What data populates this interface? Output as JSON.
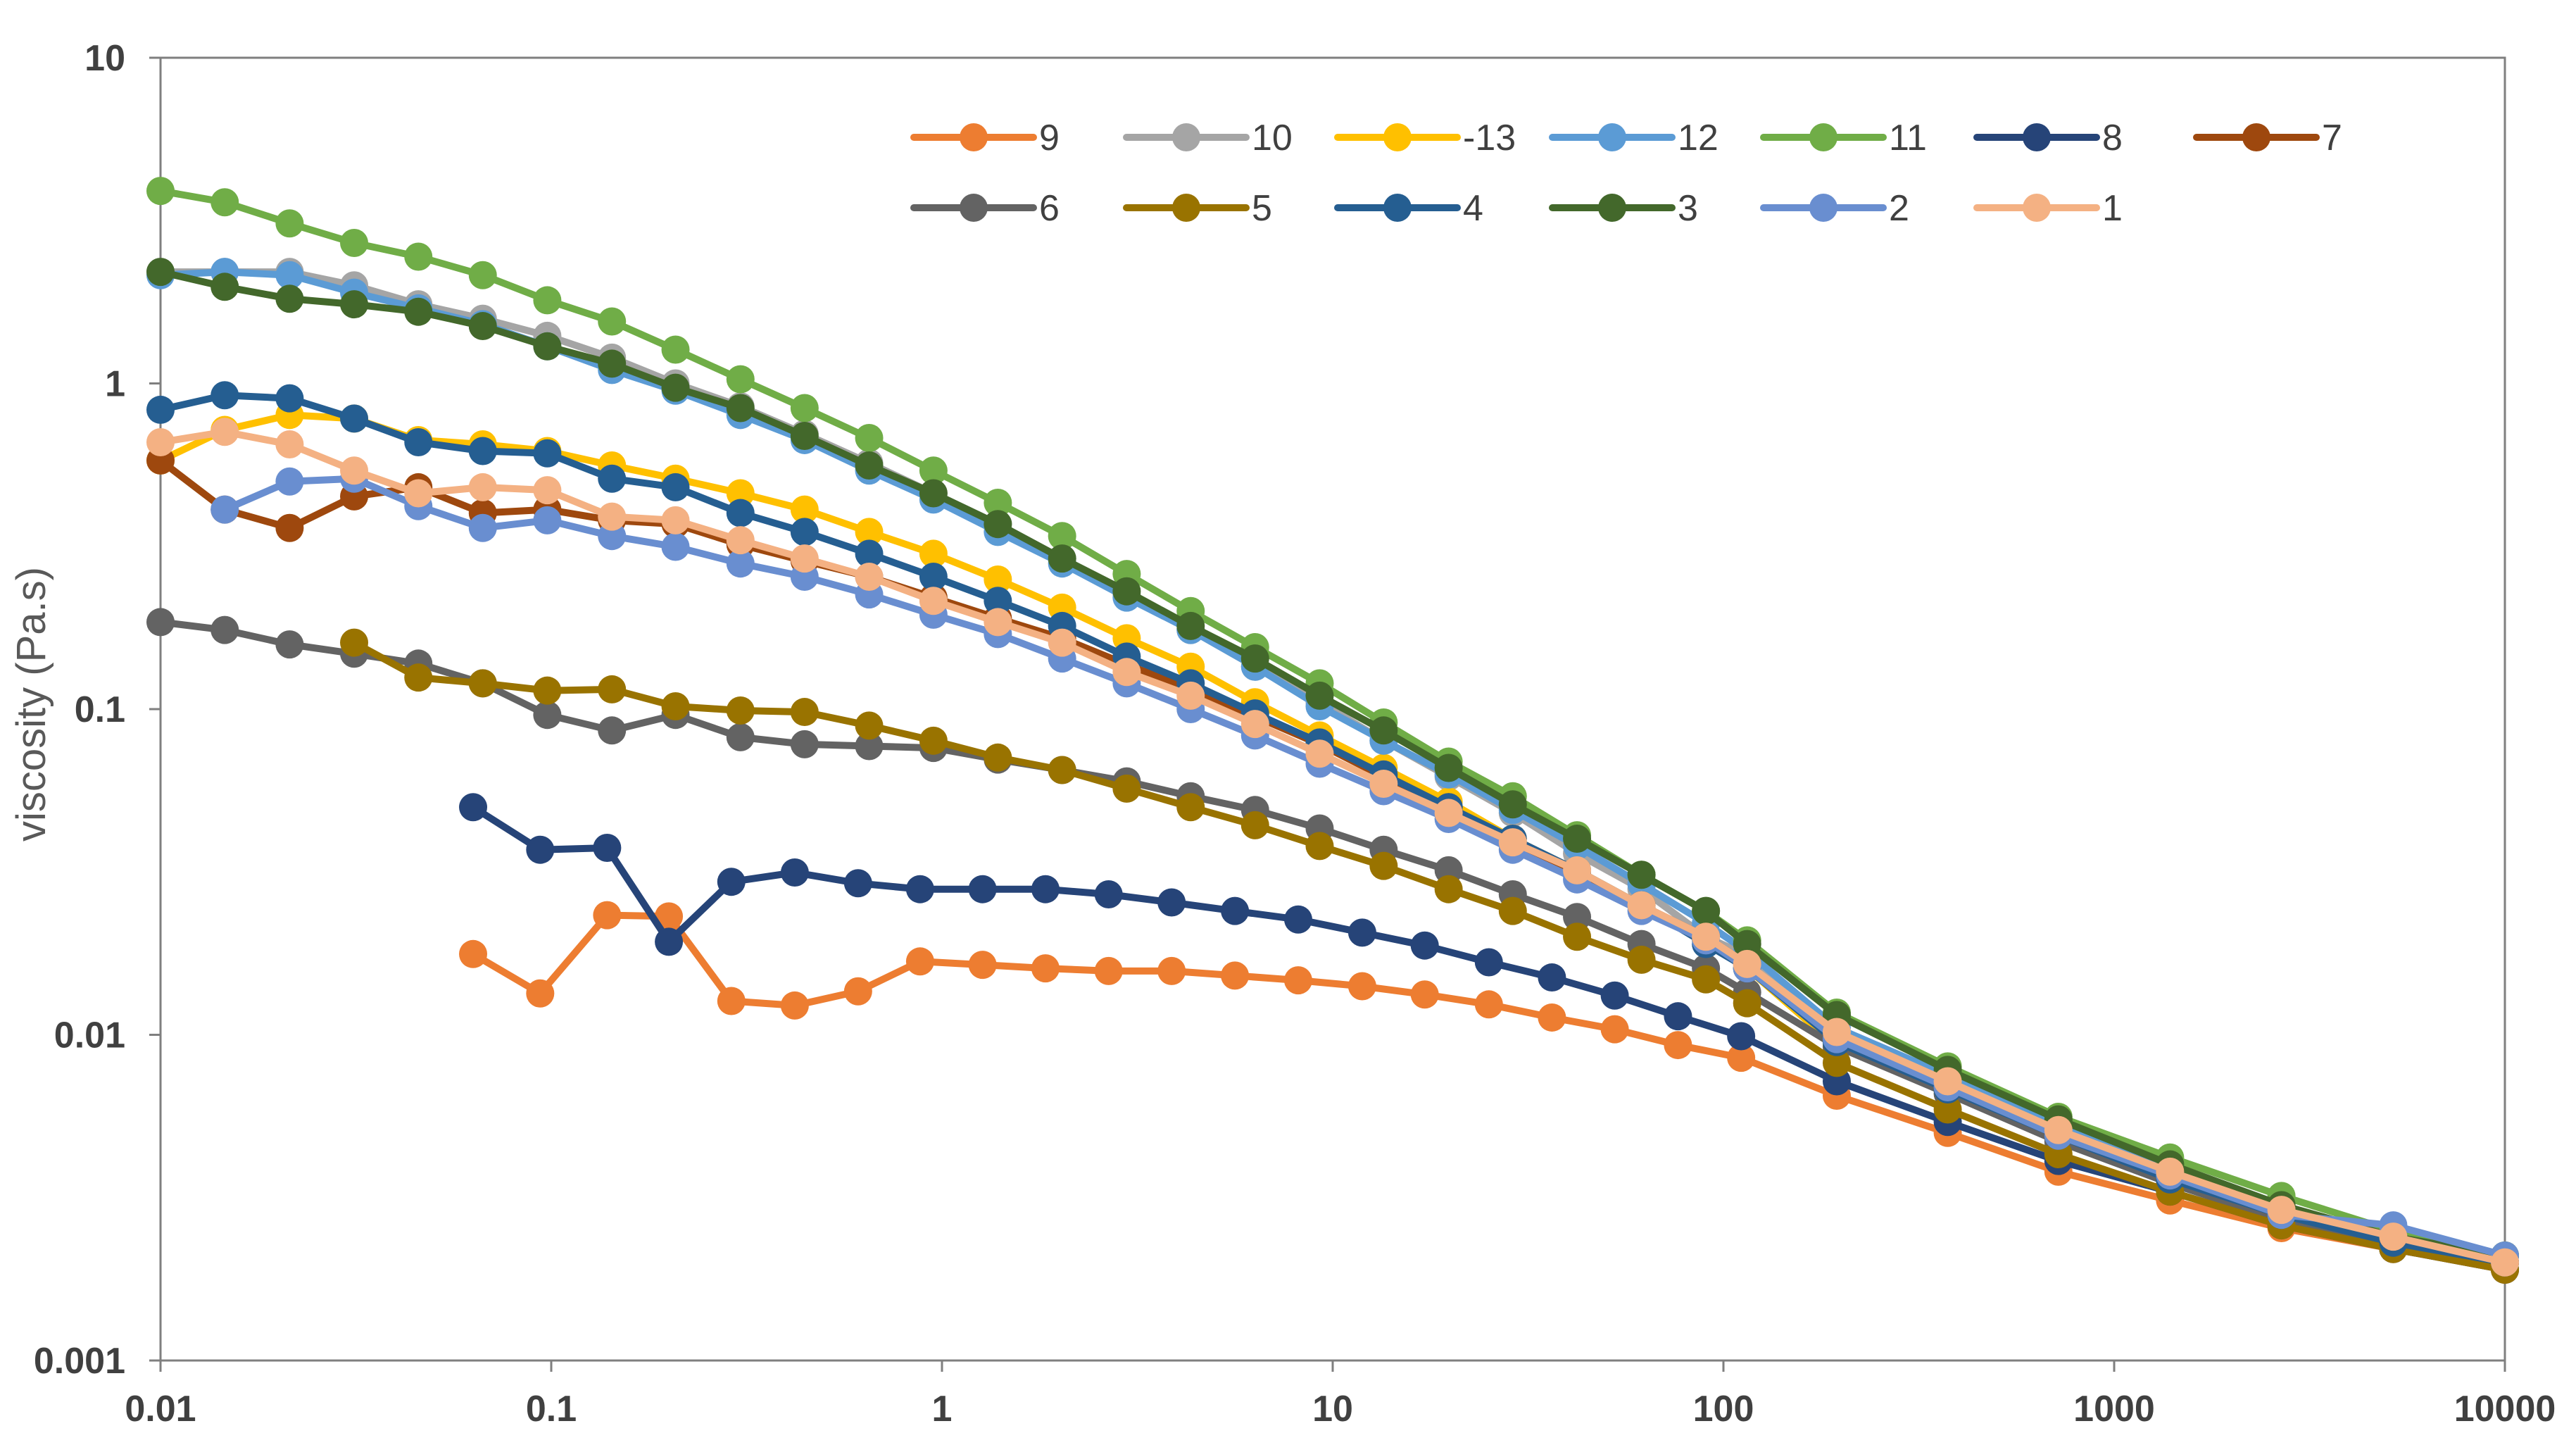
{
  "chart_data": {
    "type": "line",
    "title": "",
    "xlabel": "",
    "ylabel": "viscosity (Pa.s)",
    "xscale": "log",
    "yscale": "log",
    "xlim": [
      0.01,
      10000
    ],
    "ylim": [
      0.001,
      10
    ],
    "x_ticks": [
      "0.01",
      "0.1",
      "1",
      "10",
      "100",
      "1000",
      "10000"
    ],
    "y_ticks": [
      "0.001",
      "0.01",
      "0.1",
      "1",
      "10"
    ],
    "grid": false,
    "legend_position": "top-right",
    "series": [
      {
        "name": "9",
        "color": "#ED7D31",
        "x": [
          0.0631,
          0.0937,
          0.139,
          0.2,
          0.289,
          0.42,
          0.61,
          0.879,
          1.27,
          1.84,
          2.67,
          3.87,
          5.62,
          8.16,
          11.9,
          17.2,
          25.1,
          36.4,
          52.7,
          76.5,
          111,
          195,
          375,
          720,
          1390,
          2680,
          5180,
          10000
        ],
        "y": [
          0.0177,
          0.0134,
          0.0233,
          0.0231,
          0.0127,
          0.0123,
          0.0136,
          0.0168,
          0.0164,
          0.016,
          0.0157,
          0.0157,
          0.0152,
          0.0147,
          0.0141,
          0.0133,
          0.0124,
          0.0113,
          0.0104,
          0.0093,
          0.0085,
          0.0065,
          0.005,
          0.0038,
          0.0031,
          0.00255,
          0.0022,
          0.0019
        ]
      },
      {
        "name": "10",
        "color": "#A5A5A5",
        "x": [
          0.01,
          0.0146,
          0.0214,
          0.0313,
          0.0457,
          0.0668,
          0.0977,
          0.143,
          0.208,
          0.305,
          0.445,
          0.651,
          0.951,
          1.39,
          2.03,
          2.97,
          4.33,
          6.33,
          9.26,
          13.5,
          19.8,
          28.9,
          42.2,
          61.7,
          90.2,
          115,
          195,
          375,
          720,
          1390,
          2680,
          5180,
          10000
        ],
        "y": [
          2.2,
          2.2,
          2.2,
          2.0,
          1.75,
          1.58,
          1.4,
          1.2,
          1.0,
          0.85,
          0.7,
          0.57,
          0.46,
          0.37,
          0.29,
          0.225,
          0.175,
          0.135,
          0.105,
          0.08,
          0.062,
          0.048,
          0.036,
          0.028,
          0.02,
          0.0175,
          0.01,
          0.007,
          0.005,
          0.0037,
          0.0028,
          0.0023,
          0.002
        ]
      },
      {
        "name": "-13",
        "color": "#FFC000",
        "x": [
          0.01,
          0.0146,
          0.0214,
          0.0313,
          0.0457,
          0.0668,
          0.0977,
          0.143,
          0.208,
          0.305,
          0.445,
          0.651,
          0.951,
          1.39,
          2.03,
          2.97,
          4.33,
          6.33,
          9.26,
          13.5,
          19.8,
          28.9,
          42.2,
          61.7,
          90.2,
          115,
          195,
          375,
          720,
          1390,
          2680,
          5180,
          10000
        ],
        "y": [
          0.58,
          0.72,
          0.8,
          0.78,
          0.67,
          0.65,
          0.62,
          0.56,
          0.51,
          0.46,
          0.41,
          0.35,
          0.3,
          0.25,
          0.205,
          0.165,
          0.135,
          0.105,
          0.083,
          0.066,
          0.052,
          0.04,
          0.032,
          0.025,
          0.0195,
          0.016,
          0.0092,
          0.0068,
          0.0048,
          0.0036,
          0.0028,
          0.0023,
          0.002
        ]
      },
      {
        "name": "12",
        "color": "#5B9BD5",
        "x": [
          0.01,
          0.0146,
          0.0214,
          0.0313,
          0.0457,
          0.0668,
          0.0977,
          0.143,
          0.208,
          0.305,
          0.445,
          0.651,
          0.951,
          1.39,
          2.03,
          2.97,
          4.33,
          6.33,
          9.26,
          13.5,
          19.8,
          28.9,
          42.2,
          61.7,
          90.2,
          115,
          195,
          375,
          720,
          1390,
          2680,
          5180,
          10000
        ],
        "y": [
          2.15,
          2.2,
          2.15,
          1.9,
          1.7,
          1.52,
          1.3,
          1.1,
          0.95,
          0.8,
          0.67,
          0.54,
          0.44,
          0.35,
          0.28,
          0.22,
          0.175,
          0.135,
          0.102,
          0.08,
          0.063,
          0.049,
          0.038,
          0.029,
          0.022,
          0.018,
          0.0105,
          0.0075,
          0.0053,
          0.0039,
          0.0029,
          0.0024,
          0.0021
        ]
      },
      {
        "name": "11",
        "color": "#70AD47",
        "x": [
          0.01,
          0.0146,
          0.0214,
          0.0313,
          0.0457,
          0.0668,
          0.0977,
          0.143,
          0.208,
          0.305,
          0.445,
          0.651,
          0.951,
          1.39,
          2.03,
          2.97,
          4.33,
          6.33,
          9.26,
          13.5,
          19.8,
          28.9,
          42.2,
          61.7,
          90.2,
          115,
          195,
          375,
          720,
          1390,
          2680,
          5180,
          10000
        ],
        "y": [
          3.9,
          3.6,
          3.1,
          2.7,
          2.45,
          2.15,
          1.8,
          1.55,
          1.27,
          1.03,
          0.84,
          0.68,
          0.54,
          0.43,
          0.34,
          0.26,
          0.2,
          0.155,
          0.12,
          0.091,
          0.069,
          0.054,
          0.041,
          0.031,
          0.024,
          0.0195,
          0.0117,
          0.008,
          0.0056,
          0.0042,
          0.0032,
          0.0025,
          0.0021
        ]
      },
      {
        "name": "8",
        "color": "#264478",
        "x": [
          0.0631,
          0.0937,
          0.139,
          0.2,
          0.289,
          0.42,
          0.61,
          0.879,
          1.27,
          1.84,
          2.67,
          3.87,
          5.62,
          8.16,
          11.9,
          17.2,
          25.1,
          36.4,
          52.7,
          76.5,
          111,
          195,
          375,
          720,
          1390,
          2680,
          5180,
          10000
        ],
        "y": [
          0.05,
          0.037,
          0.0375,
          0.0193,
          0.0295,
          0.0315,
          0.0292,
          0.028,
          0.028,
          0.028,
          0.027,
          0.0255,
          0.024,
          0.0226,
          0.0206,
          0.0188,
          0.0167,
          0.015,
          0.0132,
          0.0114,
          0.0099,
          0.0072,
          0.0054,
          0.0041,
          0.0033,
          0.0026,
          0.0022,
          0.0019
        ]
      },
      {
        "name": "7",
        "color": "#9E480E",
        "x": [
          0.01,
          0.0146,
          0.0214,
          0.0313,
          0.0457,
          0.0668,
          0.0977,
          0.143,
          0.208,
          0.305,
          0.445,
          0.651,
          0.951,
          1.39,
          2.03,
          2.97,
          4.33,
          6.33,
          9.26,
          13.5,
          19.8,
          28.9,
          42.2,
          61.7,
          90.2,
          115,
          195,
          375,
          720,
          1390,
          2680,
          5180,
          10000
        ],
        "y": [
          0.58,
          0.41,
          0.36,
          0.45,
          0.48,
          0.4,
          0.41,
          0.38,
          0.37,
          0.32,
          0.285,
          0.255,
          0.22,
          0.19,
          0.165,
          0.137,
          0.115,
          0.095,
          0.078,
          0.062,
          0.05,
          0.039,
          0.031,
          0.025,
          0.02,
          0.0165,
          0.0098,
          0.007,
          0.005,
          0.0037,
          0.0028,
          0.0023,
          0.002
        ]
      },
      {
        "name": "6",
        "color": "#636363",
        "x": [
          0.01,
          0.0146,
          0.0214,
          0.0313,
          0.0457,
          0.0668,
          0.0977,
          0.143,
          0.208,
          0.305,
          0.445,
          0.651,
          0.951,
          1.39,
          2.03,
          2.97,
          4.33,
          6.33,
          9.26,
          13.5,
          19.8,
          28.9,
          42.2,
          61.7,
          90.2,
          115,
          195,
          375,
          720,
          1390,
          2680,
          5180,
          10000
        ],
        "y": [
          0.185,
          0.175,
          0.158,
          0.148,
          0.138,
          0.12,
          0.096,
          0.086,
          0.096,
          0.082,
          0.078,
          0.077,
          0.076,
          0.07,
          0.065,
          0.06,
          0.054,
          0.049,
          0.043,
          0.037,
          0.032,
          0.027,
          0.023,
          0.019,
          0.016,
          0.0135,
          0.0092,
          0.0066,
          0.0047,
          0.0035,
          0.0027,
          0.0022,
          0.0019
        ]
      },
      {
        "name": "5",
        "color": "#997300",
        "x": [
          0.0313,
          0.0457,
          0.0668,
          0.0977,
          0.143,
          0.208,
          0.305,
          0.445,
          0.651,
          0.951,
          1.39,
          2.03,
          2.97,
          4.33,
          6.33,
          9.26,
          13.5,
          19.8,
          28.9,
          42.2,
          61.7,
          90.2,
          115,
          195,
          375,
          720,
          1390,
          2680,
          5180,
          10000
        ],
        "y": [
          0.16,
          0.125,
          0.12,
          0.114,
          0.115,
          0.102,
          0.099,
          0.098,
          0.089,
          0.08,
          0.071,
          0.065,
          0.057,
          0.05,
          0.044,
          0.038,
          0.033,
          0.028,
          0.024,
          0.02,
          0.017,
          0.0148,
          0.0125,
          0.0082,
          0.0059,
          0.0043,
          0.0033,
          0.0026,
          0.0022,
          0.0019
        ]
      },
      {
        "name": "4",
        "color": "#255E91",
        "x": [
          0.01,
          0.0146,
          0.0214,
          0.0313,
          0.0457,
          0.0668,
          0.0977,
          0.143,
          0.208,
          0.305,
          0.445,
          0.651,
          0.951,
          1.39,
          2.03,
          2.97,
          4.33,
          6.33,
          9.26,
          13.5,
          19.8,
          28.9,
          42.2,
          61.7,
          90.2,
          115,
          195,
          375,
          720,
          1390,
          2680,
          5180,
          10000
        ],
        "y": [
          0.83,
          0.92,
          0.9,
          0.78,
          0.66,
          0.62,
          0.61,
          0.51,
          0.48,
          0.4,
          0.35,
          0.3,
          0.255,
          0.215,
          0.18,
          0.145,
          0.12,
          0.097,
          0.079,
          0.063,
          0.05,
          0.04,
          0.032,
          0.025,
          0.019,
          0.016,
          0.0095,
          0.0068,
          0.0049,
          0.0036,
          0.0028,
          0.0023,
          0.002
        ]
      },
      {
        "name": "3",
        "color": "#43682B",
        "x": [
          0.01,
          0.0146,
          0.0214,
          0.0313,
          0.0457,
          0.0668,
          0.0977,
          0.143,
          0.208,
          0.305,
          0.445,
          0.651,
          0.951,
          1.39,
          2.03,
          2.97,
          4.33,
          6.33,
          9.26,
          13.5,
          19.8,
          28.9,
          42.2,
          61.7,
          90.2,
          115,
          195,
          375,
          720,
          1390,
          2680,
          5180,
          10000
        ],
        "y": [
          2.2,
          1.98,
          1.82,
          1.75,
          1.66,
          1.5,
          1.3,
          1.15,
          0.97,
          0.84,
          0.69,
          0.56,
          0.46,
          0.37,
          0.29,
          0.23,
          0.18,
          0.143,
          0.11,
          0.086,
          0.066,
          0.051,
          0.04,
          0.031,
          0.024,
          0.019,
          0.0115,
          0.0078,
          0.0055,
          0.004,
          0.003,
          0.0024,
          0.0021
        ]
      },
      {
        "name": "2",
        "color": "#698ED0",
        "x": [
          0.0146,
          0.0214,
          0.0313,
          0.0457,
          0.0668,
          0.0977,
          0.143,
          0.208,
          0.305,
          0.445,
          0.651,
          0.951,
          1.39,
          2.03,
          2.97,
          4.33,
          6.33,
          9.26,
          13.5,
          19.8,
          28.9,
          42.2,
          61.7,
          90.2,
          115,
          195,
          375,
          720,
          1390,
          2680,
          5180,
          10000
        ],
        "y": [
          0.41,
          0.5,
          0.51,
          0.42,
          0.36,
          0.38,
          0.34,
          0.315,
          0.28,
          0.255,
          0.225,
          0.195,
          0.17,
          0.143,
          0.12,
          0.1,
          0.083,
          0.068,
          0.056,
          0.046,
          0.037,
          0.03,
          0.024,
          0.0195,
          0.016,
          0.0097,
          0.0069,
          0.0049,
          0.0037,
          0.0028,
          0.0026,
          0.0021
        ]
      },
      {
        "name": "1",
        "color": "#F4B183",
        "x": [
          0.01,
          0.0146,
          0.0214,
          0.0313,
          0.0457,
          0.0668,
          0.0977,
          0.143,
          0.208,
          0.305,
          0.445,
          0.651,
          0.951,
          1.39,
          2.03,
          2.97,
          4.33,
          6.33,
          9.26,
          13.5,
          19.8,
          28.9,
          42.2,
          61.7,
          90.2,
          115,
          195,
          375,
          720,
          1390,
          2680,
          5180,
          10000
        ],
        "y": [
          0.66,
          0.71,
          0.65,
          0.54,
          0.46,
          0.48,
          0.47,
          0.39,
          0.38,
          0.33,
          0.29,
          0.255,
          0.215,
          0.185,
          0.16,
          0.13,
          0.11,
          0.09,
          0.073,
          0.059,
          0.048,
          0.039,
          0.032,
          0.025,
          0.02,
          0.0165,
          0.0102,
          0.0072,
          0.0051,
          0.0038,
          0.0029,
          0.0024,
          0.002
        ]
      }
    ]
  }
}
